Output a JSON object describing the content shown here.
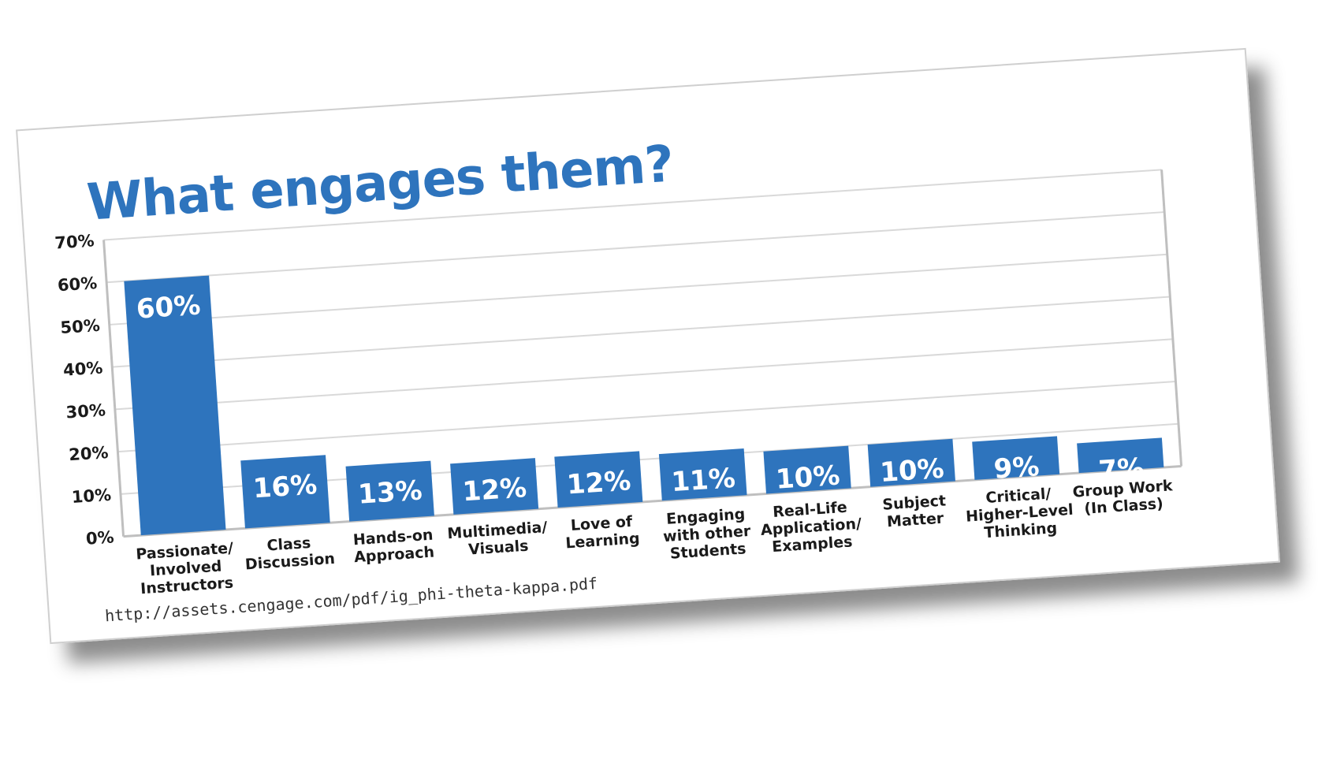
{
  "chart_data": {
    "type": "bar",
    "title": "What engages them?",
    "categories": [
      "Passionate/\nInvolved\nInstructors",
      "Class\nDiscussion",
      "Hands-on\nApproach",
      "Multimedia/\nVisuals",
      "Love of\nLearning",
      "Engaging\nwith other\nStudents",
      "Real-Life\nApplication/\nExamples",
      "Subject\nMatter",
      "Critical/\nHigher-Level\nThinking",
      "Group Work\n(In Class)"
    ],
    "values": [
      60,
      16,
      13,
      12,
      12,
      11,
      10,
      10,
      9,
      7
    ],
    "data_labels": [
      "60%",
      "16%",
      "13%",
      "12%",
      "12%",
      "11%",
      "10%",
      "10%",
      "9%",
      "7%"
    ],
    "yticks": [
      "0%",
      "10%",
      "20%",
      "30%",
      "40%",
      "50%",
      "60%",
      "70%"
    ],
    "ylim": [
      0,
      70
    ],
    "grid": true,
    "xlabel": "",
    "ylabel": ""
  },
  "source": "http://assets.cengage.com/pdf/ig_phi-theta-kappa.pdf",
  "colors": {
    "bar": "#2e74bd",
    "title": "#2e74bd",
    "grid": "#d9d9d9",
    "axis": "#bfbfbf"
  }
}
